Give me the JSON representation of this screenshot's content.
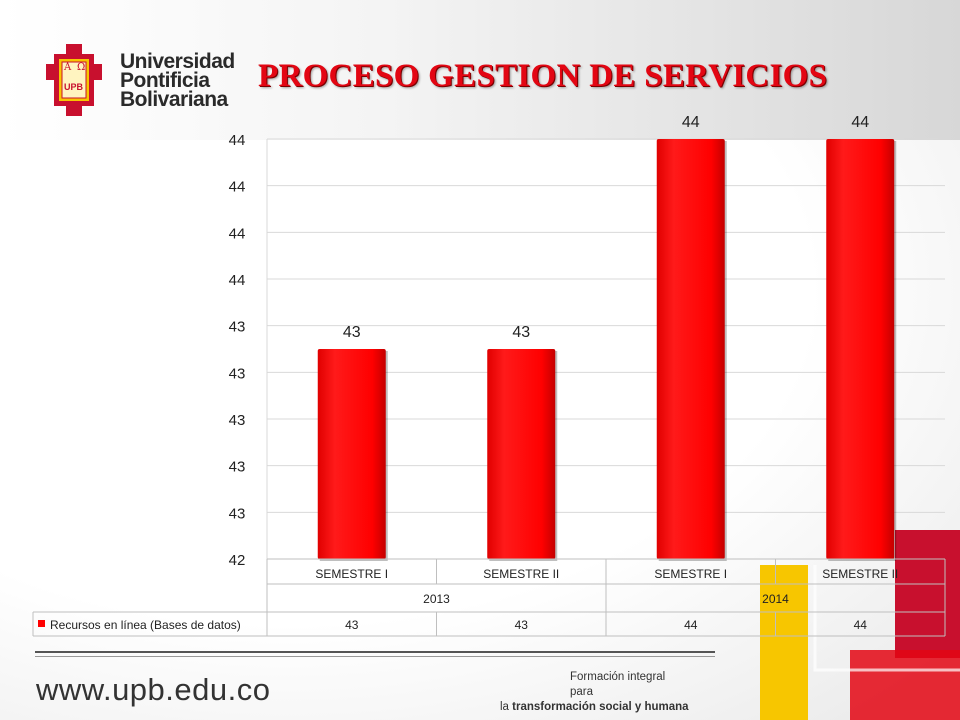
{
  "slide": {
    "title": "PROCESO GESTION DE SERVICIOS",
    "logo_lines": [
      "Universidad",
      "Pontificia",
      "Bolivariana"
    ],
    "logo_glyphs": [
      "Α",
      "Ω",
      "UPB"
    ],
    "footer_url": "www.upb.edu.co",
    "tagline_1": "Formación integral para",
    "tagline_2a": "la ",
    "tagline_2b": "transformación social y humana",
    "colors": {
      "accent": "#e30613",
      "yellow": "#f7c600",
      "dark_red": "#c8102e"
    }
  },
  "chart_data": {
    "type": "bar",
    "categories": [
      "SEMESTRE I",
      "SEMESTRE II",
      "SEMESTRE I",
      "SEMESTRE II"
    ],
    "groups": [
      {
        "label": "2013",
        "span": 2
      },
      {
        "label": "2014",
        "span": 2
      }
    ],
    "series": [
      {
        "name": "Recursos en línea (Bases de datos)",
        "values": [
          43,
          43,
          44,
          44
        ],
        "color": "#ff0000"
      }
    ],
    "data_labels": [
      "43",
      "43",
      "44",
      "44"
    ],
    "y_tick_labels": [
      "42",
      "43",
      "43",
      "43",
      "43",
      "43",
      "44",
      "44",
      "44",
      "44"
    ],
    "ylim": [
      42,
      44
    ],
    "grid": true,
    "legend": "data-table"
  }
}
